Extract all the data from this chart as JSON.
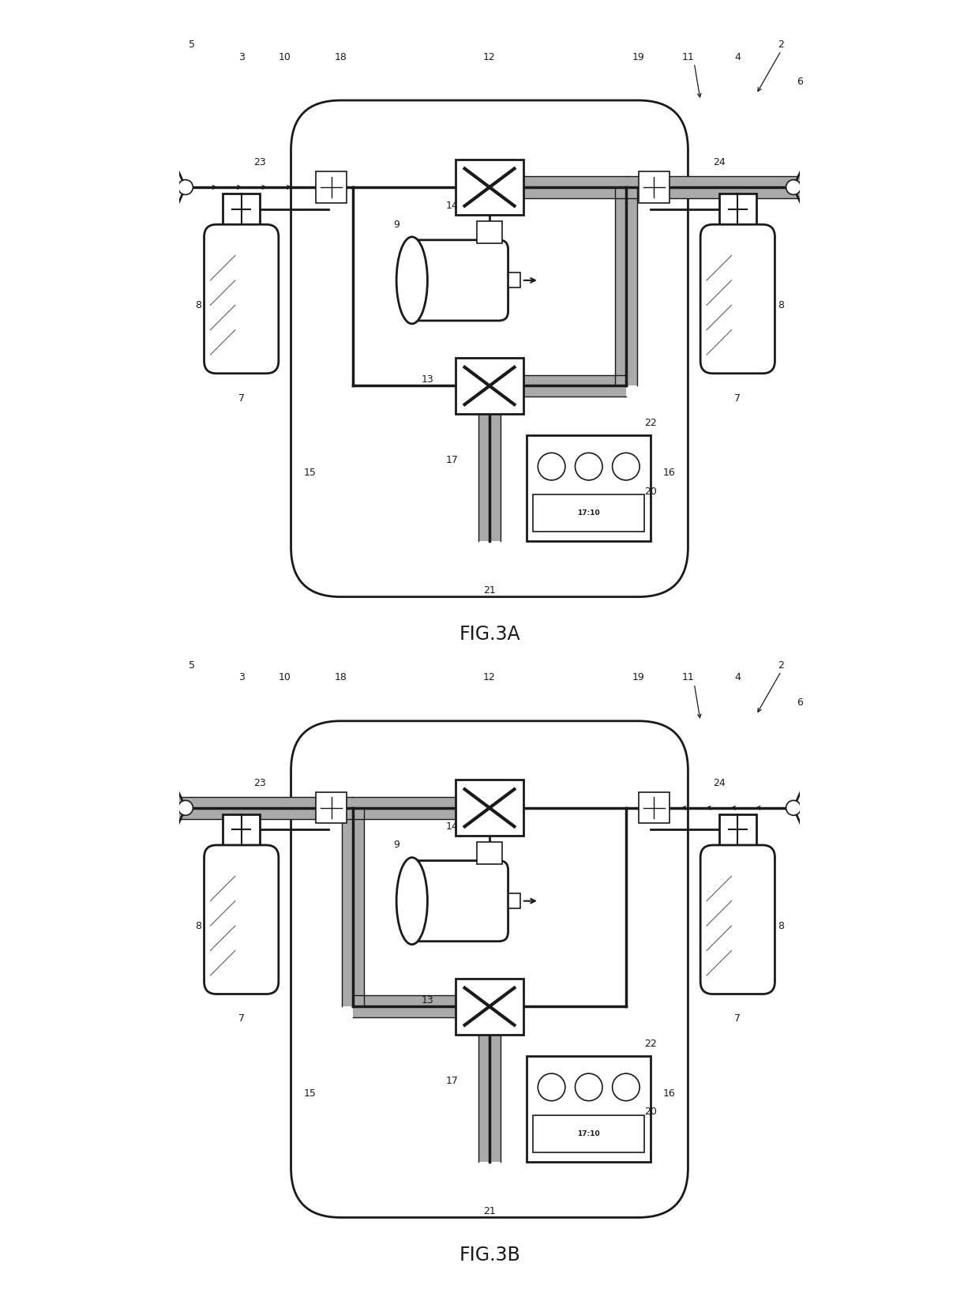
{
  "fig_title_a": "FIG.3A",
  "fig_title_b": "FIG.3B",
  "bg_color": "#ffffff",
  "line_color": "#1a1a1a",
  "shading_color": "#aaaaaa",
  "label_color": "#000000",
  "figsize": [
    12.4,
    16.37
  ],
  "dpi": 100
}
